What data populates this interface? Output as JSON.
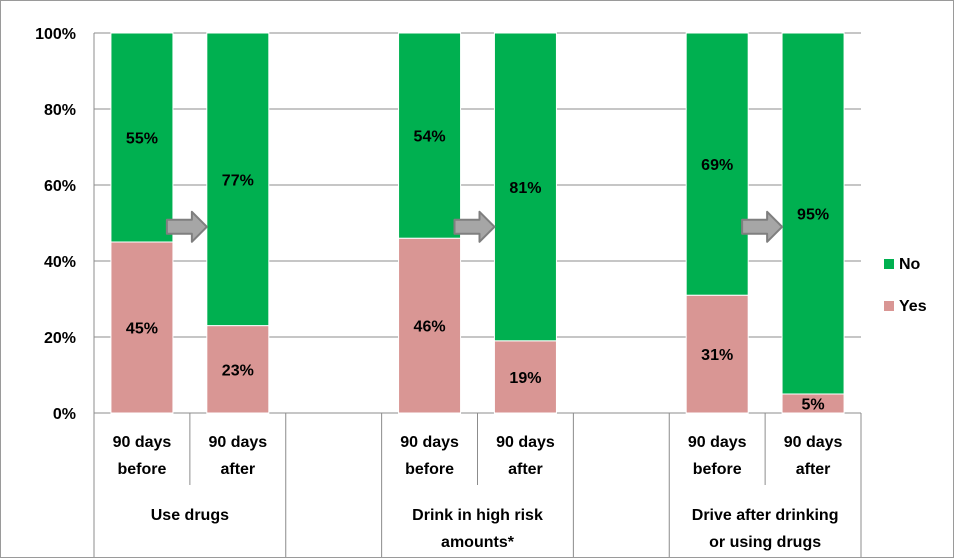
{
  "chart_data": {
    "type": "bar",
    "stacked": true,
    "percent": true,
    "ylim": [
      0,
      100
    ],
    "yticks": [
      0,
      20,
      40,
      60,
      80,
      100
    ],
    "ytick_labels": [
      "0%",
      "20%",
      "40%",
      "60%",
      "80%",
      "100%"
    ],
    "grid": true,
    "legend_position": "right",
    "groups": [
      {
        "label": "Use drugs",
        "bars": [
          {
            "label": "90 days before",
            "line1": "90 days",
            "line2": "before",
            "yes": 45,
            "no": 55
          },
          {
            "label": "90 days after",
            "line1": "90 days",
            "line2": "after",
            "yes": 23,
            "no": 77
          }
        ]
      },
      {
        "label": "Drink in high risk amounts*",
        "line1": "Drink in high risk",
        "line2": "amounts*",
        "bars": [
          {
            "label": "90 days before",
            "line1": "90 days",
            "line2": "before",
            "yes": 46,
            "no": 54
          },
          {
            "label": "90 days after",
            "line1": "90 days",
            "line2": "after",
            "yes": 19,
            "no": 81
          }
        ]
      },
      {
        "label": "Drive after drinking or using drugs",
        "line1": "Drive after drinking",
        "line2": "or using drugs",
        "bars": [
          {
            "label": "90 days before",
            "line1": "90 days",
            "line2": "before",
            "yes": 31,
            "no": 69
          },
          {
            "label": "90 days after",
            "line1": "90 days",
            "line2": "after",
            "yes": 5,
            "no": 95
          }
        ]
      }
    ],
    "series": [
      {
        "name": "No",
        "color": "#00b050"
      },
      {
        "name": "Yes",
        "color": "#d99694"
      }
    ],
    "value_labels": {
      "yes": [
        "45%",
        "23%",
        "46%",
        "19%",
        "31%",
        "5%"
      ],
      "no": [
        "55%",
        "77%",
        "54%",
        "81%",
        "69%",
        "95%"
      ]
    },
    "annotations": [
      {
        "type": "arrow-icon",
        "between": [
          "Use drugs: 90 days before",
          "Use drugs: 90 days after"
        ]
      },
      {
        "type": "arrow-icon",
        "between": [
          "Drink in high risk amounts*: 90 days before",
          "Drink in high risk amounts*: 90 days after"
        ]
      },
      {
        "type": "arrow-icon",
        "between": [
          "Drive after drinking or using drugs: 90 days before",
          "Drive after drinking or using drugs: 90 days after"
        ]
      }
    ]
  }
}
